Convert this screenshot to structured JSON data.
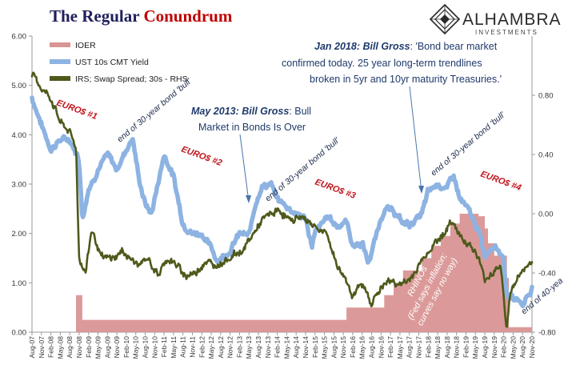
{
  "chart_data": {
    "type": "line",
    "title": {
      "part1": "The Regular ",
      "part2": "Conundrum"
    },
    "colors": {
      "ioer": "#d99594",
      "ust": "#8db3e2",
      "irs": "#4d5a1b",
      "title_dark": "#1f1f5c",
      "title_red": "#c00000",
      "annotation": "#1f3a6b",
      "euro": "#c0141b"
    },
    "y_left": {
      "ticks": [
        "6.00",
        "5.00",
        "4.00",
        "3.00",
        "2.00",
        "1.00",
        "0.00"
      ],
      "ylim": [
        0,
        6
      ]
    },
    "y_right": {
      "ticks": [
        "0.80",
        "0.40",
        "0.00",
        "-0.40",
        "-0.80"
      ],
      "ylim": [
        -0.8,
        1.2
      ]
    },
    "x_ticks": [
      "Aug-07",
      "Nov-07",
      "Feb-08",
      "May-08",
      "Aug-08",
      "Nov-08",
      "Feb-09",
      "May-09",
      "Aug-09",
      "Nov-09",
      "Feb-10",
      "May-10",
      "Aug-10",
      "Nov-10",
      "Feb-11",
      "May-11",
      "Aug-11",
      "Nov-11",
      "Feb-12",
      "May-12",
      "Aug-12",
      "Nov-12",
      "Feb-13",
      "May-13",
      "Aug-13",
      "Nov-13",
      "Feb-14",
      "May-14",
      "Aug-14",
      "Nov-14",
      "Feb-15",
      "May-15",
      "Aug-15",
      "Nov-15",
      "Feb-16",
      "May-16",
      "Aug-16",
      "Nov-16",
      "Feb-17",
      "May-17",
      "Aug-17",
      "Nov-17",
      "Feb-18",
      "May-18",
      "Aug-18",
      "Nov-18",
      "Feb-19",
      "May-19",
      "Aug-19",
      "Nov-19",
      "Feb-20",
      "May-20",
      "Aug-20",
      "Nov-20"
    ],
    "legend": [
      {
        "label": "IOER",
        "key": "ioer"
      },
      {
        "label": "UST 10s CMT Yield",
        "key": "ust"
      },
      {
        "label": "IRS; Swap Spread; 30s - RHS",
        "key": "irs"
      }
    ],
    "series": [
      {
        "name": "IOER",
        "axis": "left",
        "points": [
          [
            "2008-10",
            0.75
          ],
          [
            "2008-12",
            0.25
          ],
          [
            "2015-12",
            0.5
          ],
          [
            "2016-12",
            0.75
          ],
          [
            "2017-03",
            1.0
          ],
          [
            "2017-06",
            1.25
          ],
          [
            "2017-12",
            1.5
          ],
          [
            "2018-03",
            1.75
          ],
          [
            "2018-06",
            1.95
          ],
          [
            "2018-09",
            2.2
          ],
          [
            "2018-12",
            2.4
          ],
          [
            "2019-06",
            2.35
          ],
          [
            "2019-08",
            2.1
          ],
          [
            "2019-09",
            1.8
          ],
          [
            "2019-11",
            1.55
          ],
          [
            "2020-03",
            1.1
          ],
          [
            "2020-03-20",
            0.1
          ],
          [
            "2020-11",
            0.1
          ]
        ]
      },
      {
        "name": "UST 10s CMT Yield",
        "axis": "left",
        "points": [
          [
            "2007-08",
            4.75
          ],
          [
            "2007-11",
            4.2
          ],
          [
            "2008-02",
            3.7
          ],
          [
            "2008-05",
            3.9
          ],
          [
            "2008-08",
            3.9
          ],
          [
            "2008-11",
            3.5
          ],
          [
            "2008-12",
            2.3
          ],
          [
            "2009-02",
            2.9
          ],
          [
            "2009-05",
            3.3
          ],
          [
            "2009-08",
            3.6
          ],
          [
            "2009-11",
            3.3
          ],
          [
            "2010-02",
            3.7
          ],
          [
            "2010-04",
            3.95
          ],
          [
            "2010-06",
            3.1
          ],
          [
            "2010-08",
            2.6
          ],
          [
            "2010-10",
            2.4
          ],
          [
            "2011-02",
            3.6
          ],
          [
            "2011-05",
            3.15
          ],
          [
            "2011-08",
            2.2
          ],
          [
            "2011-11",
            2.0
          ],
          [
            "2012-02",
            2.0
          ],
          [
            "2012-05",
            1.7
          ],
          [
            "2012-07",
            1.45
          ],
          [
            "2012-11",
            1.65
          ],
          [
            "2013-02",
            2.0
          ],
          [
            "2013-05",
            1.95
          ],
          [
            "2013-07",
            2.6
          ],
          [
            "2013-09",
            2.95
          ],
          [
            "2013-12",
            3.0
          ],
          [
            "2014-02",
            2.7
          ],
          [
            "2014-05",
            2.55
          ],
          [
            "2014-08",
            2.4
          ],
          [
            "2014-11",
            2.3
          ],
          [
            "2015-01",
            1.75
          ],
          [
            "2015-02",
            2.0
          ],
          [
            "2015-06",
            2.35
          ],
          [
            "2015-09",
            2.15
          ],
          [
            "2015-12",
            2.25
          ],
          [
            "2016-02",
            1.75
          ],
          [
            "2016-05",
            1.8
          ],
          [
            "2016-07",
            1.4
          ],
          [
            "2016-11",
            2.3
          ],
          [
            "2016-12",
            2.5
          ],
          [
            "2017-03",
            2.45
          ],
          [
            "2017-06",
            2.2
          ],
          [
            "2017-09",
            2.2
          ],
          [
            "2017-12",
            2.4
          ],
          [
            "2018-02",
            2.85
          ],
          [
            "2018-05",
            3.0
          ],
          [
            "2018-08",
            2.9
          ],
          [
            "2018-10",
            3.2
          ],
          [
            "2018-12",
            2.7
          ],
          [
            "2019-03",
            2.45
          ],
          [
            "2019-06",
            2.05
          ],
          [
            "2019-08",
            1.55
          ],
          [
            "2019-11",
            1.8
          ],
          [
            "2020-02",
            1.5
          ],
          [
            "2020-03",
            0.7
          ],
          [
            "2020-06",
            0.7
          ],
          [
            "2020-08",
            0.55
          ],
          [
            "2020-11",
            0.9
          ]
        ]
      },
      {
        "name": "IRS; Swap Spread; 30s - RHS",
        "axis": "right",
        "points": [
          [
            "2007-08",
            0.95
          ],
          [
            "2007-11",
            0.85
          ],
          [
            "2008-02",
            0.78
          ],
          [
            "2008-05",
            0.62
          ],
          [
            "2008-08",
            0.55
          ],
          [
            "2008-10",
            0.45
          ],
          [
            "2008-11",
            -0.3
          ],
          [
            "2009-01",
            -0.4
          ],
          [
            "2009-03",
            -0.1
          ],
          [
            "2009-06",
            -0.3
          ],
          [
            "2009-10",
            -0.3
          ],
          [
            "2010-01",
            -0.25
          ],
          [
            "2010-03",
            -0.3
          ],
          [
            "2010-06",
            -0.35
          ],
          [
            "2010-09",
            -0.3
          ],
          [
            "2010-12",
            -0.42
          ],
          [
            "2011-03",
            -0.3
          ],
          [
            "2011-06",
            -0.35
          ],
          [
            "2011-09",
            -0.42
          ],
          [
            "2011-12",
            -0.4
          ],
          [
            "2012-03",
            -0.32
          ],
          [
            "2012-06",
            -0.35
          ],
          [
            "2012-09",
            -0.32
          ],
          [
            "2012-12",
            -0.28
          ],
          [
            "2013-03",
            -0.25
          ],
          [
            "2013-06",
            -0.15
          ],
          [
            "2013-09",
            -0.05
          ],
          [
            "2013-12",
            0.0
          ],
          [
            "2014-03",
            0.02
          ],
          [
            "2014-06",
            -0.05
          ],
          [
            "2014-09",
            -0.02
          ],
          [
            "2014-12",
            -0.05
          ],
          [
            "2015-03",
            -0.1
          ],
          [
            "2015-06",
            -0.15
          ],
          [
            "2015-09",
            -0.35
          ],
          [
            "2015-12",
            -0.45
          ],
          [
            "2016-02",
            -0.55
          ],
          [
            "2016-05",
            -0.48
          ],
          [
            "2016-08",
            -0.6
          ],
          [
            "2016-11",
            -0.5
          ],
          [
            "2017-02",
            -0.45
          ],
          [
            "2017-05",
            -0.48
          ],
          [
            "2017-08",
            -0.45
          ],
          [
            "2017-11",
            -0.35
          ],
          [
            "2018-02",
            -0.25
          ],
          [
            "2018-05",
            -0.18
          ],
          [
            "2018-08",
            -0.1
          ],
          [
            "2018-10",
            -0.05
          ],
          [
            "2018-12",
            -0.15
          ],
          [
            "2019-03",
            -0.2
          ],
          [
            "2019-06",
            -0.3
          ],
          [
            "2019-08",
            -0.45
          ],
          [
            "2019-10",
            -0.4
          ],
          [
            "2020-01",
            -0.35
          ],
          [
            "2020-03",
            -0.78
          ],
          [
            "2020-04",
            -0.55
          ],
          [
            "2020-06",
            -0.45
          ],
          [
            "2020-08",
            -0.38
          ],
          [
            "2020-11",
            -0.33
          ]
        ]
      }
    ],
    "annotations": {
      "gross2018_bold": "Jan 2018: Bill Gross",
      "gross2018_l1": ": 'Bond bear market",
      "gross2018_l2": "confirmed today. 25 year long-term trendlines",
      "gross2018_l3": "broken in 5yr and 10yr maturity Treasuries.'",
      "gross2013_bold": "May 2013: Bill Gross",
      "gross2013_l1": ": Bull",
      "gross2013_l2": "Market in Bonds Is Over",
      "euro1": "EURO$ #1",
      "euro2": "EURO$ #2",
      "euro3": "EURO$ #3",
      "euro4": "EURO$ #4",
      "bull1": "end of 30-year bond 'bull'",
      "bull2": "end of 30-year bond 'bull'",
      "bull3": "end of 30-year bond 'bull'",
      "bull4": "end of 40-yea",
      "rhino_l1": "RHINOs",
      "rhino_l2": "(Fed says inflation;",
      "rhino_l3": "curves say no way)"
    },
    "logo": {
      "name": "Alhambra",
      "sub": "INVESTMENTS"
    }
  }
}
